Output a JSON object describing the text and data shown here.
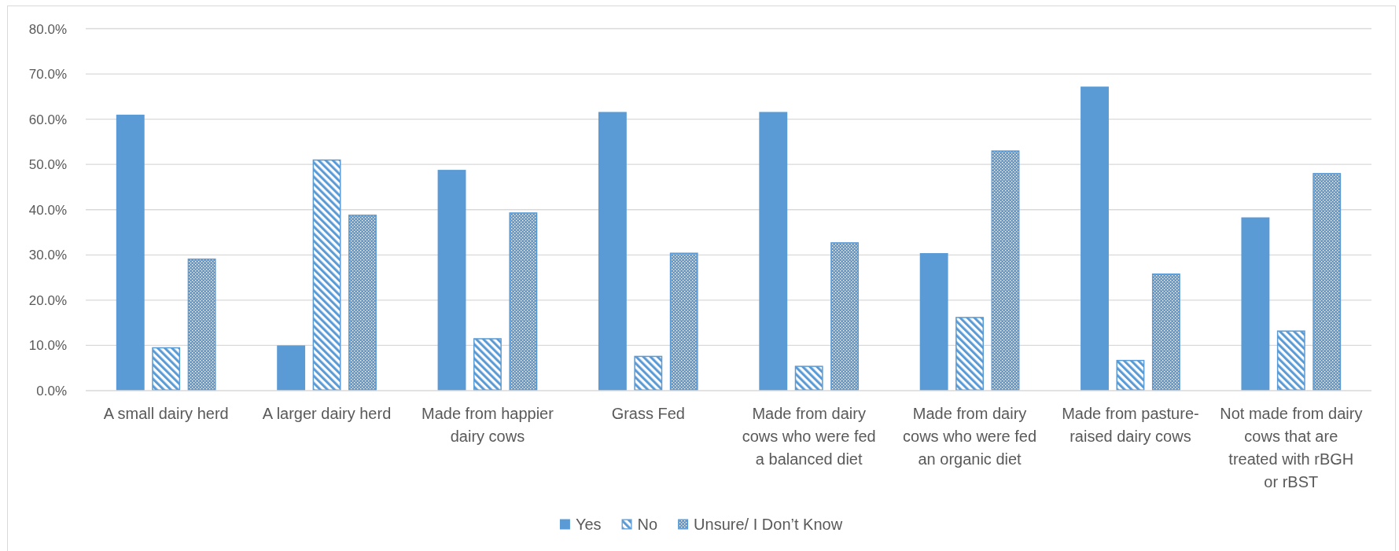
{
  "chart_data": {
    "type": "bar",
    "categories": [
      "A small dairy herd",
      "A larger dairy herd",
      "Made from happier dairy cows",
      "Grass Fed",
      "Made from dairy cows who were fed a balanced diet",
      "Made from dairy cows who were fed an organic diet",
      "Made from pasture-raised dairy cows",
      "Not made from dairy cows that are treated with rBGH or rBST"
    ],
    "series": [
      {
        "name": "Yes",
        "color": "#5b9bd5",
        "values": [
          61.0,
          10.0,
          48.8,
          61.6,
          61.6,
          30.4,
          67.2,
          38.3
        ]
      },
      {
        "name": "No",
        "color": "#5b9bd5",
        "values": [
          9.6,
          51.1,
          11.6,
          7.7,
          5.5,
          16.3,
          6.8,
          13.3
        ]
      },
      {
        "name": "Unsure/ I Don’t Know",
        "color": "#5b9bd5",
        "values": [
          29.2,
          38.9,
          39.4,
          30.5,
          32.8,
          53.1,
          25.9,
          48.1
        ]
      }
    ],
    "ylim": [
      0,
      80
    ],
    "yticks": [
      {
        "value": 0,
        "label": "0.0%"
      },
      {
        "value": 10,
        "label": "10.0%"
      },
      {
        "value": 20,
        "label": "20.0%"
      },
      {
        "value": 30,
        "label": "30.0%"
      },
      {
        "value": 40,
        "label": "40.0%"
      },
      {
        "value": 50,
        "label": "50.0%"
      },
      {
        "value": 60,
        "label": "60.0%"
      },
      {
        "value": 70,
        "label": "70.0%"
      },
      {
        "value": 80,
        "label": "80.0%"
      }
    ],
    "grid": "y",
    "legend": "bottom"
  }
}
